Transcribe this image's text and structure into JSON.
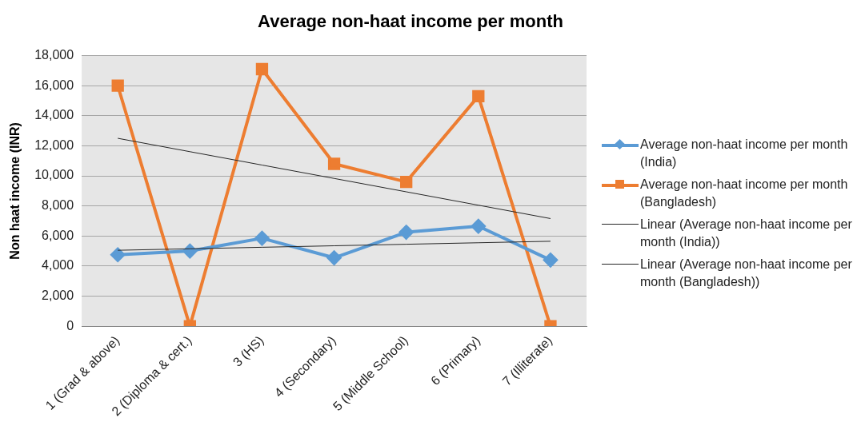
{
  "chart_data": {
    "type": "line",
    "title": "Average non-haat income per month",
    "ylabel": "Non haat income (INR)",
    "categories": [
      "1 (Grad & above)",
      "2 (Diploma & cert.)",
      "3 (HS)",
      "4 (Secondary)",
      "5 (Middle School)",
      "6 (Primary)",
      "7 (Illiterate)"
    ],
    "series": [
      {
        "name": "Average non-haat income per month (India)",
        "color": "#5b9bd5",
        "marker": "diamond",
        "values": [
          4750,
          5000,
          5850,
          4550,
          6250,
          6650,
          4400
        ]
      },
      {
        "name": "Average non-haat income per month (Bangladesh)",
        "color": "#ed7d31",
        "marker": "square",
        "values": [
          16000,
          0,
          17100,
          10800,
          9600,
          15300,
          0
        ]
      },
      {
        "name": "Linear (Average non-haat income per month (India))",
        "color": "#262626",
        "marker": "none",
        "values": [
          5050,
          5150,
          5250,
          5350,
          5450,
          5550,
          5650
        ]
      },
      {
        "name": "Linear (Average non-haat income per month (Bangladesh))",
        "color": "#262626",
        "marker": "none",
        "values": [
          12500,
          11610,
          10720,
          9830,
          8940,
          8050,
          7160
        ]
      }
    ],
    "ylim": [
      0,
      18000
    ],
    "yticks": [
      {
        "value": 0,
        "label": "0"
      },
      {
        "value": 2000,
        "label": "2,000"
      },
      {
        "value": 4000,
        "label": "4,000"
      },
      {
        "value": 6000,
        "label": "6,000"
      },
      {
        "value": 8000,
        "label": "8,000"
      },
      {
        "value": 10000,
        "label": "10,000"
      },
      {
        "value": 12000,
        "label": "12,000"
      },
      {
        "value": 14000,
        "label": "14,000"
      },
      {
        "value": 16000,
        "label": "16,000"
      },
      {
        "value": 18000,
        "label": "18,000"
      }
    ],
    "grid": "y",
    "legend": "right"
  }
}
